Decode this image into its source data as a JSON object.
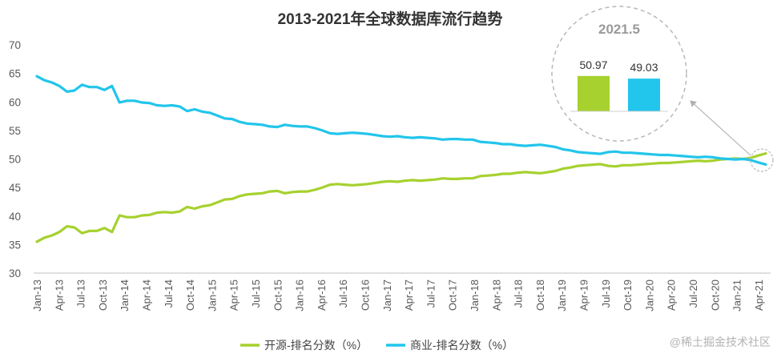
{
  "chart_data": {
    "type": "line",
    "title": "2013-2021年全球数据库流行趋势",
    "xlabel": "",
    "ylabel": "",
    "ylim": [
      30,
      70
    ],
    "yticks": [
      30,
      35,
      40,
      45,
      50,
      55,
      60,
      65,
      70
    ],
    "grid": false,
    "legend_position": "bottom",
    "x_labels": [
      "Jan-13",
      "Apr-13",
      "Jul-13",
      "Oct-13",
      "Jan-14",
      "Apr-14",
      "Jul-14",
      "Oct-14",
      "Jan-15",
      "Apr-15",
      "Jul-15",
      "Oct-15",
      "Jan-16",
      "Apr-16",
      "Jul-16",
      "Oct-16",
      "Jan-17",
      "Apr-17",
      "Jul-17",
      "Oct-17",
      "Jan-18",
      "Apr-18",
      "Jul-18",
      "Oct-18",
      "Jan-19",
      "Apr-19",
      "Jul-19",
      "Oct-19",
      "Jan-20",
      "Apr-20",
      "Jul-20",
      "Oct-20",
      "Jan-21",
      "Apr-21"
    ],
    "series": [
      {
        "name": "开源-排名分数（%）",
        "color": "#a6d12f",
        "values": [
          35.5,
          36.2,
          36.6,
          37.2,
          38.2,
          38.0,
          37.0,
          37.4,
          37.4,
          37.9,
          37.2,
          40.1,
          39.8,
          39.8,
          40.1,
          40.2,
          40.6,
          40.7,
          40.6,
          40.8,
          41.6,
          41.3,
          41.7,
          41.9,
          42.4,
          42.9,
          43.0,
          43.5,
          43.8,
          43.9,
          44.0,
          44.3,
          44.4,
          44.0,
          44.2,
          44.3,
          44.3,
          44.6,
          45.0,
          45.5,
          45.6,
          45.5,
          45.4,
          45.5,
          45.6,
          45.8,
          46.0,
          46.1,
          46.0,
          46.2,
          46.3,
          46.2,
          46.3,
          46.4,
          46.6,
          46.5,
          46.5,
          46.6,
          46.6,
          47.0,
          47.1,
          47.2,
          47.4,
          47.4,
          47.6,
          47.7,
          47.6,
          47.5,
          47.7,
          47.9,
          48.3,
          48.5,
          48.8,
          48.9,
          49.0,
          49.1,
          48.8,
          48.7,
          48.9,
          48.9,
          49.0,
          49.1,
          49.2,
          49.3,
          49.3,
          49.4,
          49.5,
          49.6,
          49.7,
          49.6,
          49.7,
          49.9,
          50.0,
          50.1,
          50.0,
          50.2,
          50.6,
          50.97
        ]
      },
      {
        "name": "商业-排名分数（%）",
        "color": "#22c5eb",
        "values": [
          64.5,
          63.8,
          63.4,
          62.8,
          61.8,
          62.0,
          63.0,
          62.6,
          62.6,
          62.1,
          62.8,
          59.9,
          60.2,
          60.2,
          59.9,
          59.8,
          59.4,
          59.3,
          59.4,
          59.2,
          58.4,
          58.7,
          58.3,
          58.1,
          57.6,
          57.1,
          57.0,
          56.5,
          56.2,
          56.1,
          56.0,
          55.7,
          55.6,
          56.0,
          55.8,
          55.7,
          55.7,
          55.4,
          55.0,
          54.5,
          54.4,
          54.5,
          54.6,
          54.5,
          54.4,
          54.2,
          54.0,
          53.9,
          54.0,
          53.8,
          53.7,
          53.8,
          53.7,
          53.6,
          53.4,
          53.5,
          53.5,
          53.4,
          53.4,
          53.0,
          52.9,
          52.8,
          52.6,
          52.6,
          52.4,
          52.3,
          52.4,
          52.5,
          52.3,
          52.1,
          51.7,
          51.5,
          51.2,
          51.1,
          51.0,
          50.9,
          51.2,
          51.3,
          51.1,
          51.1,
          51.0,
          50.9,
          50.8,
          50.7,
          50.7,
          50.6,
          50.5,
          50.4,
          50.3,
          50.4,
          50.3,
          50.1,
          50.0,
          49.9,
          50.0,
          49.8,
          49.4,
          49.03
        ]
      }
    ],
    "inset": {
      "title": "2021.5",
      "bars": [
        {
          "name": "开源",
          "value": 50.97,
          "label": "50.97",
          "color": "#a6d12f"
        },
        {
          "name": "商业",
          "value": 49.03,
          "label": "49.03",
          "color": "#22c5eb"
        }
      ]
    }
  },
  "watermark": "@稀土掘金技术社区"
}
